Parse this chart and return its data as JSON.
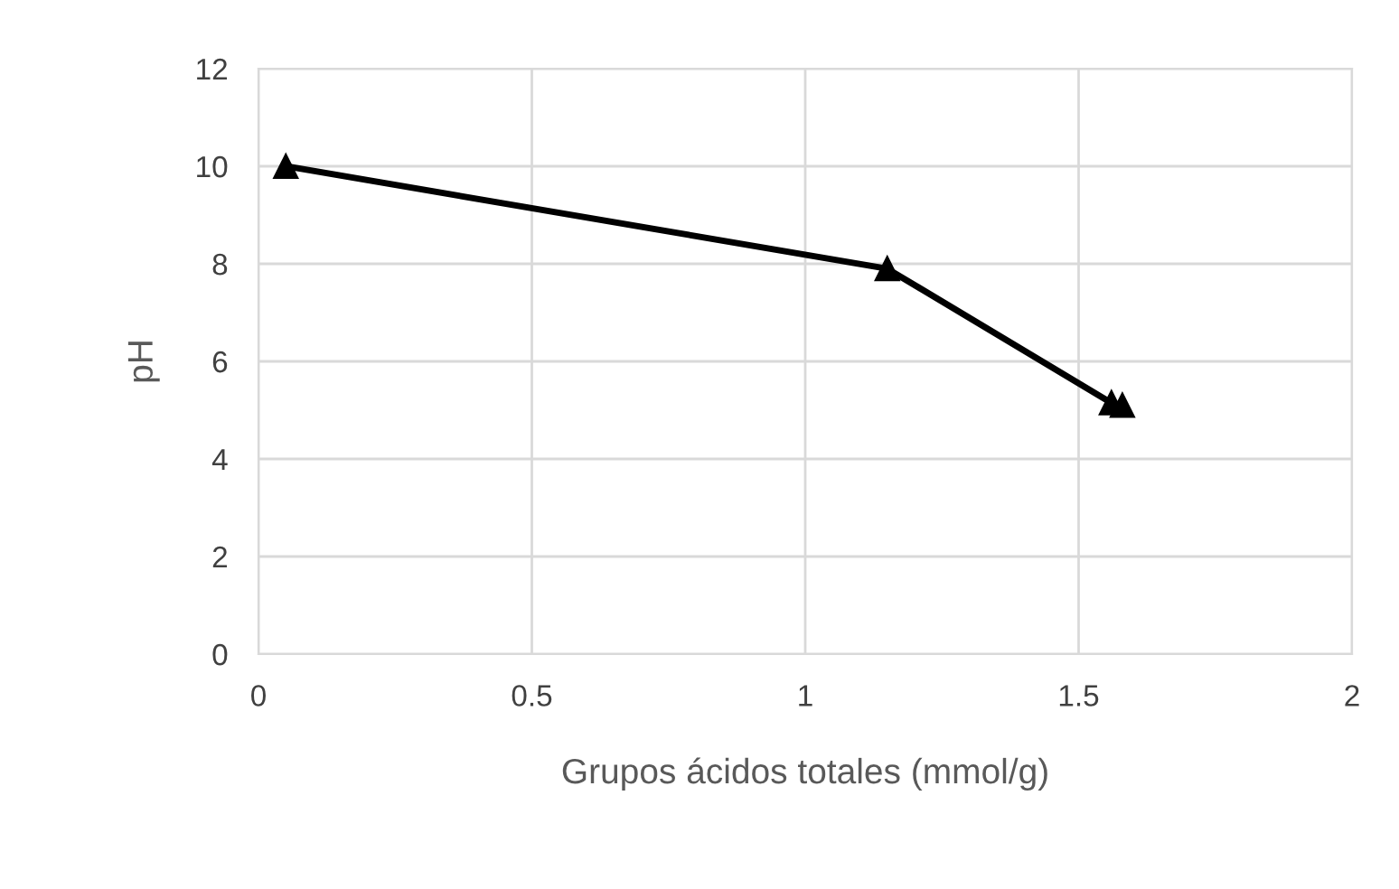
{
  "chart_data": {
    "type": "line",
    "xlabel": "Grupos ácidos totales (mmol/g)",
    "ylabel": "pH",
    "x": [
      0.05,
      1.15,
      1.56,
      1.58
    ],
    "series": [
      {
        "color": "#000000",
        "values": [
          10.0,
          7.9,
          5.15,
          5.1
        ]
      }
    ],
    "xlim": [
      0,
      2
    ],
    "xticks": [
      0,
      0.5,
      1,
      1.5,
      2
    ],
    "ylim": [
      0,
      12
    ],
    "yticks": [
      0,
      2,
      4,
      6,
      8,
      10,
      12
    ],
    "grid": true,
    "marker": "triangle",
    "line_style": "solid"
  }
}
